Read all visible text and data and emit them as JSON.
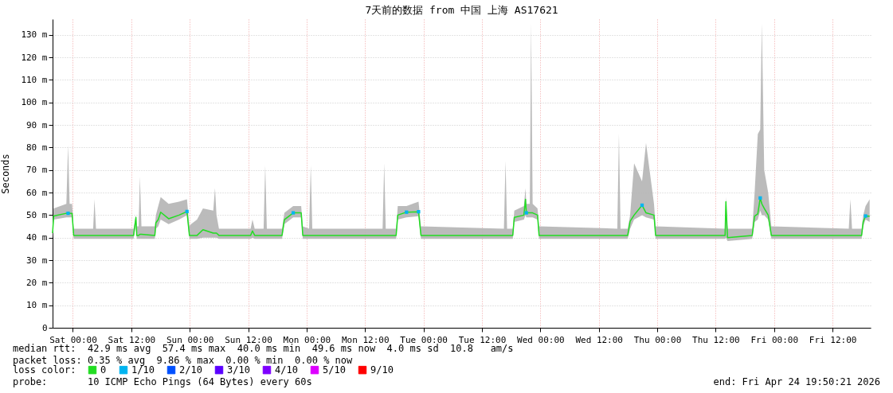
{
  "chart_data": {
    "type": "line",
    "title": "7天前的数据 from 中国 上海 AS17621",
    "ylabel": "Seconds",
    "xlim": [
      "2026-04-17T19:50",
      "2026-04-24T19:50"
    ],
    "xticks": [
      {
        "value": "2026-04-18T00:00",
        "label": "Sat 00:00"
      },
      {
        "value": "2026-04-18T12:00",
        "label": "Sat 12:00"
      },
      {
        "value": "2026-04-19T00:00",
        "label": "Sun 00:00"
      },
      {
        "value": "2026-04-19T12:00",
        "label": "Sun 12:00"
      },
      {
        "value": "2026-04-20T00:00",
        "label": "Mon 00:00"
      },
      {
        "value": "2026-04-20T12:00",
        "label": "Mon 12:00"
      },
      {
        "value": "2026-04-21T00:00",
        "label": "Tue 00:00"
      },
      {
        "value": "2026-04-21T12:00",
        "label": "Tue 12:00"
      },
      {
        "value": "2026-04-22T00:00",
        "label": "Wed 00:00"
      },
      {
        "value": "2026-04-22T12:00",
        "label": "Wed 12:00"
      },
      {
        "value": "2026-04-23T00:00",
        "label": "Thu 00:00"
      },
      {
        "value": "2026-04-23T12:00",
        "label": "Thu 12:00"
      },
      {
        "value": "2026-04-24T00:00",
        "label": "Fri 00:00"
      },
      {
        "value": "2026-04-24T12:00",
        "label": "Fri 12:00"
      }
    ],
    "ylim": [
      0,
      137
    ],
    "yticks": [
      0,
      {
        "value": 10,
        "label": "10 m"
      },
      {
        "value": 20,
        "label": "20 m"
      },
      {
        "value": 30,
        "label": "30 m"
      },
      {
        "value": 40,
        "label": "40 m"
      },
      {
        "value": 50,
        "label": "50 m"
      },
      {
        "value": 60,
        "label": "60 m"
      },
      {
        "value": 70,
        "label": "70 m"
      },
      {
        "value": 80,
        "label": "80 m"
      },
      {
        "value": 90,
        "label": "90 m"
      },
      {
        "value": 100,
        "label": "100 m"
      },
      {
        "value": 110,
        "label": "110 m"
      },
      {
        "value": 120,
        "label": "120 m"
      },
      {
        "value": 130,
        "label": "130 m"
      }
    ],
    "grid": true,
    "legend": "bottom",
    "legend_title": "loss color:",
    "series": [
      {
        "name": "0",
        "color": "#22dd22",
        "x": [
          "2026-04-17T19:50",
          "2026-04-17T20:04",
          "2026-04-17T22:40",
          "2026-04-17T23:01",
          "2026-04-17T23:20",
          "2026-04-17T23:50",
          "2026-04-18T00:10",
          "2026-04-18T04:10",
          "2026-04-18T04:26",
          "2026-04-18T04:45",
          "2026-04-18T12:28",
          "2026-04-18T12:57",
          "2026-04-18T13:07",
          "2026-04-18T13:30",
          "2026-04-18T13:46",
          "2026-04-18T14:05",
          "2026-04-18T16:50",
          "2026-04-18T17:03",
          "2026-04-18T17:32",
          "2026-04-18T18:02",
          "2026-04-18T19:40",
          "2026-04-18T21:48",
          "2026-04-18T23:26",
          "2026-04-18T23:56",
          "2026-04-19T00:16",
          "2026-04-19T01:30",
          "2026-04-19T02:43",
          "2026-04-19T04:50",
          "2026-04-19T05:11",
          "2026-04-19T05:30",
          "2026-04-19T06:00",
          "2026-04-19T12:30",
          "2026-04-19T12:53",
          "2026-04-19T13:20",
          "2026-04-19T15:10",
          "2026-04-19T15:30",
          "2026-04-19T15:50",
          "2026-04-19T18:57",
          "2026-04-19T19:26",
          "2026-04-19T21:15",
          "2026-04-19T22:53",
          "2026-04-19T23:13",
          "2026-04-20T00:31",
          "2026-04-20T00:51",
          "2026-04-20T01:10",
          "2026-04-20T15:36",
          "2026-04-20T15:56",
          "2026-04-20T16:15",
          "2026-04-20T18:23",
          "2026-04-20T18:43",
          "2026-04-20T20:31",
          "2026-04-20T22:59",
          "2026-04-20T23:29",
          "2026-04-21T16:31",
          "2026-04-21T16:51",
          "2026-04-21T17:10",
          "2026-04-21T18:20",
          "2026-04-21T18:39",
          "2026-04-21T20:37",
          "2026-04-21T20:57",
          "2026-04-21T21:07",
          "2026-04-21T21:50",
          "2026-04-21T22:06",
          "2026-04-21T22:25",
          "2026-04-21T23:25",
          "2026-04-21T23:44",
          "2026-04-22T15:48",
          "2026-04-22T16:08",
          "2026-04-22T16:28",
          "2026-04-22T17:56",
          "2026-04-22T18:26",
          "2026-04-22T19:15",
          "2026-04-22T20:53",
          "2026-04-22T21:42",
          "2026-04-22T23:20",
          "2026-04-22T23:40",
          "2026-04-23T13:56",
          "2026-04-23T14:06",
          "2026-04-23T14:26",
          "2026-04-23T19:30",
          "2026-04-23T20:00",
          "2026-04-23T20:39",
          "2026-04-23T21:09",
          "2026-04-23T21:29",
          "2026-04-23T21:58",
          "2026-04-23T22:47",
          "2026-04-23T23:26",
          "2026-04-24T15:20",
          "2026-04-24T15:40",
          "2026-04-24T16:00",
          "2026-04-24T17:58",
          "2026-04-24T18:18",
          "2026-04-24T18:47",
          "2026-04-24T19:37"
        ],
        "values": [
          42,
          49.6,
          50.8,
          50.8,
          50.8,
          50.8,
          41,
          41,
          41,
          41,
          41,
          49,
          41,
          41,
          41.5,
          41.5,
          41,
          46.6,
          48,
          51.3,
          48.4,
          50,
          51.6,
          41,
          41,
          41,
          43.5,
          42,
          42,
          42,
          41,
          41,
          43,
          41,
          41,
          41,
          41,
          41,
          48,
          51,
          51,
          41,
          41,
          41,
          41,
          41,
          41,
          41,
          41,
          50,
          51.3,
          51.5,
          41,
          41,
          41,
          41,
          41,
          49,
          50,
          57,
          51,
          51,
          51,
          51,
          50,
          41,
          41,
          41,
          41,
          41,
          47.3,
          50,
          54.4,
          51,
          50,
          41,
          41,
          56,
          40,
          41,
          49.6,
          50.5,
          57.6,
          55,
          53,
          50,
          41,
          41,
          41,
          41,
          41,
          47,
          49.6,
          49.5
        ],
        "lower": [
          40,
          48,
          49,
          49,
          49,
          49,
          39.5,
          39.5,
          39.5,
          39.5,
          39.5,
          46,
          39.5,
          39.5,
          39.5,
          39.5,
          39.5,
          44,
          45,
          48,
          46,
          48,
          50,
          39.5,
          39.5,
          39.5,
          40,
          40,
          40,
          40,
          39.5,
          39.5,
          40,
          39.5,
          39.5,
          39.5,
          39.5,
          39.5,
          46,
          49,
          49,
          39.5,
          39.5,
          39.5,
          39.5,
          39.5,
          39.5,
          39.5,
          39.5,
          48,
          49,
          49.5,
          39.5,
          39.5,
          39.5,
          39.5,
          39.5,
          47,
          48,
          50,
          49,
          49,
          49,
          49,
          48,
          39.5,
          39.5,
          39.5,
          39.5,
          39.5,
          44,
          48,
          50,
          49,
          48,
          39.5,
          39.5,
          40,
          38.5,
          39.5,
          47,
          48,
          52,
          50,
          50,
          48,
          39.5,
          39.5,
          39.5,
          39.5,
          39.5,
          45,
          48,
          47
        ],
        "upper": [
          45,
          53,
          55,
          81,
          55,
          55,
          44,
          44,
          57,
          44,
          44,
          50,
          45,
          45,
          67,
          45,
          45,
          50,
          54,
          58,
          55,
          56,
          57,
          45,
          46,
          48,
          53,
          52,
          62,
          50,
          44,
          44,
          48,
          44,
          44,
          72,
          44,
          44,
          51,
          54,
          54,
          45,
          44,
          72,
          44,
          44,
          73,
          44,
          44,
          54,
          54,
          56,
          45,
          44,
          74,
          44,
          44,
          52,
          54,
          62,
          55,
          55,
          135,
          55,
          53,
          45,
          44,
          86,
          44,
          44,
          50,
          73,
          65,
          82,
          55,
          45,
          44,
          58,
          44,
          44,
          60,
          86,
          88,
          135,
          70,
          60,
          45,
          44,
          57,
          44,
          44,
          50,
          54,
          57
        ]
      },
      {
        "name": "1/10",
        "type": "scatter",
        "color": "#00b4f0",
        "x": [
          "2026-04-17T23:01",
          "2026-04-18T23:26",
          "2026-04-19T21:15",
          "2026-04-20T20:31",
          "2026-04-20T22:59",
          "2026-04-21T21:07",
          "2026-04-22T20:53",
          "2026-04-23T21:09",
          "2026-04-24T18:47"
        ],
        "values": [
          50.8,
          51.6,
          51,
          51.3,
          51.5,
          51,
          54.4,
          57.6,
          49.6
        ]
      },
      {
        "name": "2/10",
        "type": "scatter",
        "color": "#0050ff"
      },
      {
        "name": "3/10",
        "type": "scatter",
        "color": "#5a00ff"
      },
      {
        "name": "4/10",
        "type": "scatter",
        "color": "#7e00ff"
      },
      {
        "name": "5/10",
        "type": "scatter",
        "color": "#dd00ff"
      },
      {
        "name": "9/10",
        "type": "scatter",
        "color": "#ff0000"
      }
    ],
    "annotations": [
      "median rtt:  42.9 ms avg  57.4 ms max  40.0 ms min  49.6 ms now  4.0 ms sd  10.8   am/s",
      "packet loss: 0.35 % avg  9.86 % max  0.00 % min  0.00 % now",
      "probe:       10 ICMP Echo Pings (64 Bytes) every 60s",
      "end: Fri Apr 24 19:50:21 2026"
    ]
  }
}
